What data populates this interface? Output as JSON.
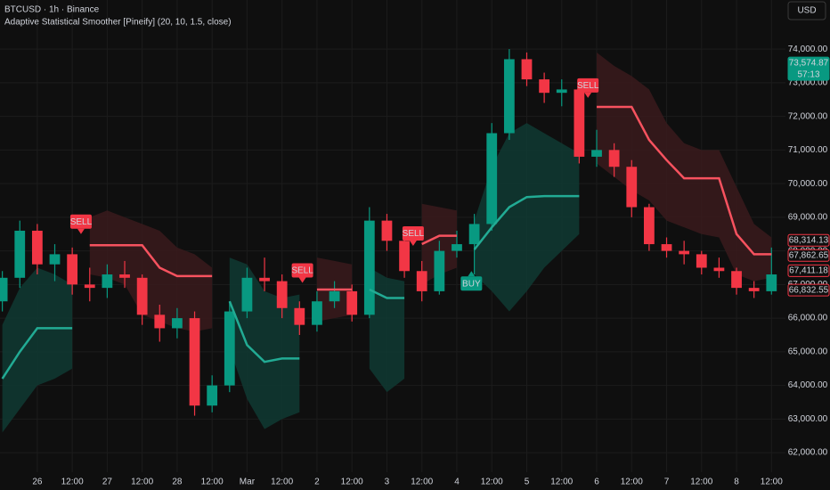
{
  "header": {
    "symbol": "BTCUSD · 1h · Binance",
    "indicator": "Adaptive Statistical Smoother [Pineify] (20, 10, 1.5, close)",
    "currency_button": "USD"
  },
  "chart_data": {
    "type": "candlestick",
    "xlim": [
      -12.8,
      256.8
    ],
    "ylim": [
      61420,
      75460
    ],
    "xticks": [
      {
        "value": 0,
        "label": "26"
      },
      {
        "value": 12,
        "label": "12:00"
      },
      {
        "value": 24,
        "label": "27"
      },
      {
        "value": 36,
        "label": "12:00"
      },
      {
        "value": 48,
        "label": "28"
      },
      {
        "value": 60,
        "label": "12:00"
      },
      {
        "value": 72,
        "label": "Mar"
      },
      {
        "value": 84,
        "label": "12:00"
      },
      {
        "value": 96,
        "label": "2"
      },
      {
        "value": 108,
        "label": "12:00"
      },
      {
        "value": 120,
        "label": "3"
      },
      {
        "value": 132,
        "label": "12:00"
      },
      {
        "value": 144,
        "label": "4"
      },
      {
        "value": 156,
        "label": "12:00"
      },
      {
        "value": 168,
        "label": "5"
      },
      {
        "value": 180,
        "label": "12:00"
      },
      {
        "value": 192,
        "label": "6"
      },
      {
        "value": 204,
        "label": "12:00"
      },
      {
        "value": 216,
        "label": "7"
      },
      {
        "value": 228,
        "label": "12:00"
      },
      {
        "value": 240,
        "label": "8"
      },
      {
        "value": 252,
        "label": "12:00"
      }
    ],
    "yticks": [
      {
        "value": 62000,
        "label": "62,000.00"
      },
      {
        "value": 63000,
        "label": "63,000.00"
      },
      {
        "value": 64000,
        "label": "64,000.00"
      },
      {
        "value": 65000,
        "label": "65,000.00"
      },
      {
        "value": 66000,
        "label": "66,000.00"
      },
      {
        "value": 67000,
        "label": "67,000.00"
      },
      {
        "value": 68000,
        "label": "68,000.00"
      },
      {
        "value": 69000,
        "label": "69,000.00"
      },
      {
        "value": 70000,
        "label": "70,000.00"
      },
      {
        "value": 71000,
        "label": "71,000.00"
      },
      {
        "value": 72000,
        "label": "72,000.00"
      },
      {
        "value": 73000,
        "label": "73,000.00"
      },
      {
        "value": 74000,
        "label": "74,000.00"
      }
    ],
    "grid": true,
    "up_color": "#089981",
    "down_color": "#f23645",
    "x": [
      -12,
      -6,
      0,
      6,
      12,
      18,
      24,
      30,
      36,
      42,
      48,
      54,
      60,
      66,
      72,
      78,
      84,
      90,
      96,
      102,
      108,
      114,
      120,
      126,
      132,
      138,
      144,
      150,
      156,
      162,
      168,
      174,
      180,
      186,
      192,
      198,
      204,
      210,
      216,
      222,
      228,
      234,
      240,
      246,
      252
    ],
    "open": [
      66500,
      67200,
      68600,
      67600,
      67900,
      67000,
      66900,
      67300,
      67200,
      66100,
      65700,
      66000,
      63400,
      64000,
      66200,
      67200,
      67100,
      66300,
      65800,
      66500,
      66800,
      66100,
      68900,
      68300,
      67400,
      66800,
      68000,
      68200,
      68800,
      71500,
      73700,
      73100,
      72700,
      72800,
      70800,
      71000,
      70500,
      69300,
      68200,
      68000,
      67900,
      67500,
      67400,
      66900,
      66800
    ],
    "high": [
      67400,
      68900,
      68800,
      68200,
      68100,
      67500,
      67600,
      67700,
      67300,
      66400,
      66300,
      66200,
      64300,
      66500,
      67500,
      67800,
      67300,
      66500,
      66800,
      67100,
      67000,
      69300,
      69100,
      68500,
      67700,
      68300,
      68600,
      69100,
      71800,
      74000,
      73900,
      73300,
      73100,
      72900,
      71600,
      71200,
      70700,
      69400,
      68400,
      68300,
      68000,
      67800,
      67500,
      67100,
      68100
    ],
    "low": [
      66200,
      66900,
      67300,
      67100,
      66700,
      66500,
      66600,
      66900,
      65800,
      65300,
      65400,
      63100,
      63200,
      63800,
      66000,
      66800,
      66000,
      65500,
      65600,
      66300,
      65900,
      66000,
      68000,
      67200,
      66500,
      66700,
      67800,
      67300,
      68600,
      71300,
      72900,
      72400,
      72300,
      70600,
      70500,
      70200,
      69000,
      68000,
      67800,
      67600,
      67300,
      67200,
      66700,
      66600,
      66700
    ],
    "close": [
      67200,
      68600,
      67600,
      67900,
      67000,
      66900,
      67300,
      67200,
      66100,
      65700,
      66000,
      63400,
      64000,
      66200,
      67200,
      67100,
      66300,
      65800,
      66500,
      66800,
      66100,
      68900,
      68300,
      67400,
      66800,
      68000,
      68200,
      68800,
      71500,
      73700,
      73100,
      72700,
      72800,
      70800,
      71000,
      70500,
      69300,
      68200,
      68000,
      67900,
      67500,
      67400,
      66900,
      66800,
      67300
    ],
    "series": [
      {
        "color": "#22ab94",
        "values": [
          64200,
          65000,
          65700,
          65700,
          65700,
          null,
          null,
          null,
          null,
          null,
          null,
          null,
          null,
          66500,
          65200,
          64700,
          64800,
          64800,
          null,
          null,
          null,
          66850,
          66600,
          66600,
          null,
          null,
          null,
          68040,
          68700,
          69300,
          69600,
          69630,
          69630,
          69630,
          null,
          null,
          null,
          null,
          null,
          null,
          null,
          null,
          null,
          null,
          null
        ],
        "upper": [
          65800,
          66900,
          67500,
          67300,
          67000,
          null,
          null,
          null,
          null,
          null,
          null,
          null,
          null,
          67800,
          67600,
          66800,
          66600,
          66700,
          null,
          null,
          null,
          67500,
          67200,
          67100,
          null,
          null,
          null,
          68900,
          70500,
          71500,
          71800,
          71500,
          71200,
          70900,
          null,
          null,
          null,
          null,
          null,
          null,
          null,
          null,
          null,
          null,
          null
        ],
        "lower": [
          62600,
          63300,
          64000,
          64200,
          64500,
          null,
          null,
          null,
          null,
          null,
          null,
          null,
          null,
          65100,
          63600,
          62700,
          63000,
          63200,
          null,
          null,
          null,
          64500,
          63800,
          64200,
          null,
          null,
          null,
          67300,
          66800,
          66200,
          66800,
          67500,
          68000,
          68500,
          null,
          null,
          null,
          null,
          null,
          null,
          null,
          null,
          null,
          null,
          null
        ],
        "band_color": "#0f3a33"
      },
      {
        "color": "#f7525f",
        "values": [
          null,
          null,
          null,
          null,
          null,
          68170,
          68170,
          68170,
          68170,
          67500,
          67250,
          67250,
          67250,
          null,
          null,
          null,
          null,
          null,
          66850,
          66850,
          66850,
          null,
          null,
          null,
          68200,
          68450,
          68450,
          null,
          null,
          null,
          null,
          null,
          null,
          null,
          72280,
          72280,
          72280,
          71300,
          70700,
          70160,
          70160,
          70160,
          68500,
          67900,
          67900
        ],
        "upper": [
          null,
          null,
          null,
          null,
          null,
          69000,
          69200,
          69000,
          68800,
          68600,
          68100,
          67900,
          67500,
          null,
          null,
          null,
          null,
          null,
          67800,
          67700,
          67600,
          null,
          null,
          null,
          69400,
          69300,
          69200,
          null,
          null,
          null,
          null,
          null,
          null,
          null,
          73900,
          73500,
          73200,
          72800,
          71800,
          71200,
          71000,
          71000,
          69900,
          68800,
          68400
        ],
        "lower": [
          null,
          null,
          null,
          null,
          null,
          67300,
          67200,
          67000,
          66100,
          65900,
          65700,
          65600,
          65700,
          null,
          null,
          null,
          null,
          null,
          65900,
          66000,
          66100,
          null,
          null,
          null,
          67000,
          67300,
          67500,
          null,
          null,
          null,
          null,
          null,
          null,
          null,
          70600,
          70200,
          69800,
          69500,
          68900,
          68700,
          68500,
          68400,
          67300,
          67100,
          67200
        ],
        "band_color": "#3a1a1c"
      }
    ],
    "signals": [
      {
        "label": "SELL",
        "x": 15,
        "y": 68500,
        "color": "#f23645",
        "side": "above"
      },
      {
        "label": "SELL",
        "x": 91,
        "y": 67050,
        "color": "#f23645",
        "side": "above"
      },
      {
        "label": "SELL",
        "x": 129,
        "y": 68150,
        "color": "#f23645",
        "side": "above"
      },
      {
        "label": "BUY",
        "x": 149,
        "y": 67400,
        "color": "#089981",
        "side": "below"
      },
      {
        "label": "SELL",
        "x": 189,
        "y": 72550,
        "color": "#f23645",
        "side": "above"
      }
    ],
    "price_labels": [
      {
        "value": 73574.87,
        "label": "73,574.87",
        "sub": "57:13",
        "color": "#089981",
        "style": "fill"
      },
      {
        "value": 68314.13,
        "label": "68,314.13",
        "color": "#f23645",
        "style": "outline"
      },
      {
        "value": 67862.65,
        "label": "67,862.65",
        "color": "#f23645",
        "style": "outline"
      },
      {
        "value": 67411.18,
        "label": "67,411.18",
        "color": "#f23645",
        "style": "outline"
      },
      {
        "value": 66832.55,
        "label": "66,832.55",
        "color": "#f23645",
        "style": "outline"
      }
    ]
  }
}
